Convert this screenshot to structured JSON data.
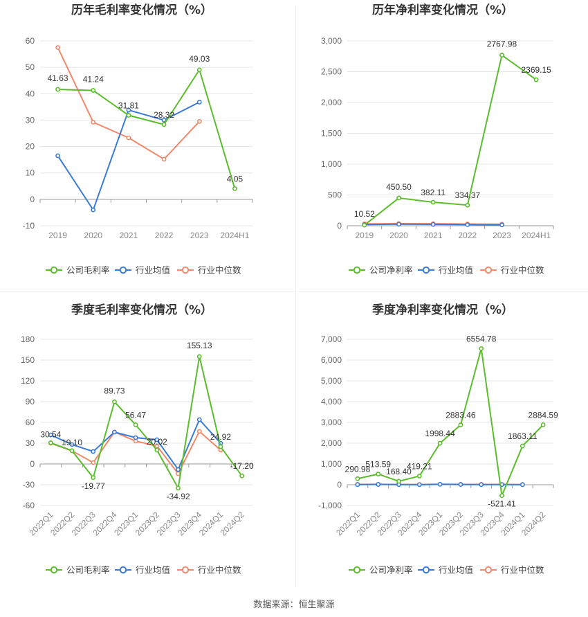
{
  "source_note": "数据来源：恒生聚源",
  "colors": {
    "company": "#5bbd2b",
    "avg": "#3a7bd5",
    "median": "#f0896b",
    "grid": "#e6e6e6",
    "axis": "#999999"
  },
  "charts": [
    {
      "id": "annual-gross",
      "type": "line",
      "title": "历年毛利率变化情况（%）",
      "categories": [
        "2019",
        "2020",
        "2021",
        "2022",
        "2023",
        "2024H1"
      ],
      "yticks": [
        "-10",
        "0",
        "10",
        "20",
        "30",
        "40",
        "50",
        "60"
      ],
      "ylim": [
        -10,
        60
      ],
      "grid": true,
      "legend_position": "bottom",
      "series": [
        {
          "name": "公司毛利率",
          "key": "company",
          "values": [
            41.63,
            41.24,
            31.81,
            28.32,
            49.03,
            4.05
          ],
          "labels": [
            "41.63",
            "41.24",
            "31.81",
            "28.32",
            "49.03",
            "4.05"
          ]
        },
        {
          "name": "行业均值",
          "key": "avg",
          "values": [
            16.5,
            -4.0,
            33.8,
            30.0,
            36.8,
            null
          ]
        },
        {
          "name": "行业中位数",
          "key": "median",
          "values": [
            57.5,
            29.2,
            23.3,
            15.2,
            29.5,
            null
          ]
        }
      ]
    },
    {
      "id": "annual-net",
      "type": "line",
      "title": "历年净利率变化情况（%）",
      "categories": [
        "2019",
        "2020",
        "2021",
        "2022",
        "2023",
        "2024H1"
      ],
      "yticks": [
        "0",
        "500",
        "1,000",
        "1,500",
        "2,000",
        "2,500",
        "3,000"
      ],
      "ylim": [
        0,
        3000
      ],
      "grid": true,
      "legend_position": "bottom",
      "series": [
        {
          "name": "公司净利率",
          "key": "company",
          "values": [
            10.52,
            450.5,
            382.11,
            334.37,
            2767.98,
            2369.15
          ],
          "labels": [
            "10.52",
            "450.50",
            "382.11",
            "334.37",
            "2767.98",
            "2369.15"
          ]
        },
        {
          "name": "行业均值",
          "key": "avg",
          "values": [
            20,
            25,
            22,
            18,
            15,
            null
          ]
        },
        {
          "name": "行业中位数",
          "key": "median",
          "values": [
            30,
            35,
            33,
            28,
            25,
            null
          ]
        }
      ]
    },
    {
      "id": "quarterly-gross",
      "type": "line",
      "title": "季度毛利率变化情况（%）",
      "categories": [
        "2022Q1",
        "2022Q2",
        "2022Q3",
        "2022Q4",
        "2023Q1",
        "2023Q2",
        "2023Q3",
        "2023Q4",
        "2024Q1",
        "2024Q2"
      ],
      "yticks": [
        "-60",
        "-30",
        "0",
        "30",
        "60",
        "90",
        "120",
        "150",
        "180"
      ],
      "ylim": [
        -60,
        180
      ],
      "grid": true,
      "legend_position": "bottom",
      "series": [
        {
          "name": "公司毛利率",
          "key": "company",
          "values": [
            30.54,
            19.1,
            -19.77,
            89.73,
            56.47,
            20.02,
            -34.92,
            155.13,
            24.92,
            -17.2
          ],
          "labels": [
            "30.54",
            "19.10",
            "-19.77",
            "89.73",
            "56.47",
            "20.02",
            "-34.92",
            "155.13",
            "24.92",
            "-17.20"
          ]
        },
        {
          "name": "行业均值",
          "key": "avg",
          "values": [
            42,
            28,
            18,
            46,
            38,
            35,
            -8,
            64,
            30,
            null
          ]
        },
        {
          "name": "行业中位数",
          "key": "median",
          "values": [
            30,
            19,
            2,
            46,
            33,
            26,
            -14,
            47,
            20,
            null
          ]
        }
      ]
    },
    {
      "id": "quarterly-net",
      "type": "line",
      "title": "季度净利率变化情况（%）",
      "categories": [
        "2022Q1",
        "2022Q2",
        "2022Q3",
        "2022Q4",
        "2023Q1",
        "2023Q2",
        "2023Q3",
        "2023Q4",
        "2024Q1",
        "2024Q2"
      ],
      "yticks": [
        "-1,000",
        "0",
        "1,000",
        "2,000",
        "3,000",
        "4,000",
        "5,000",
        "6,000",
        "7,000"
      ],
      "ylim": [
        -1000,
        7000
      ],
      "grid": true,
      "legend_position": "bottom",
      "series": [
        {
          "name": "公司净利率",
          "key": "company",
          "values": [
            290.98,
            513.59,
            168.4,
            419.21,
            1998.44,
            2883.46,
            6554.78,
            -521.41,
            1863.11,
            2884.59
          ],
          "labels": [
            "290.98",
            "513.59",
            "168.40",
            "419.21",
            "1998.44",
            "2883.46",
            "6554.78",
            "-521.41",
            "1863.11",
            "2884.59"
          ]
        },
        {
          "name": "行业均值",
          "key": "avg",
          "values": [
            10,
            15,
            8,
            5,
            20,
            12,
            10,
            8,
            6,
            null
          ]
        },
        {
          "name": "行业中位数",
          "key": "median",
          "values": [
            15,
            20,
            12,
            10,
            25,
            18,
            14,
            12,
            10,
            null
          ]
        }
      ]
    }
  ]
}
